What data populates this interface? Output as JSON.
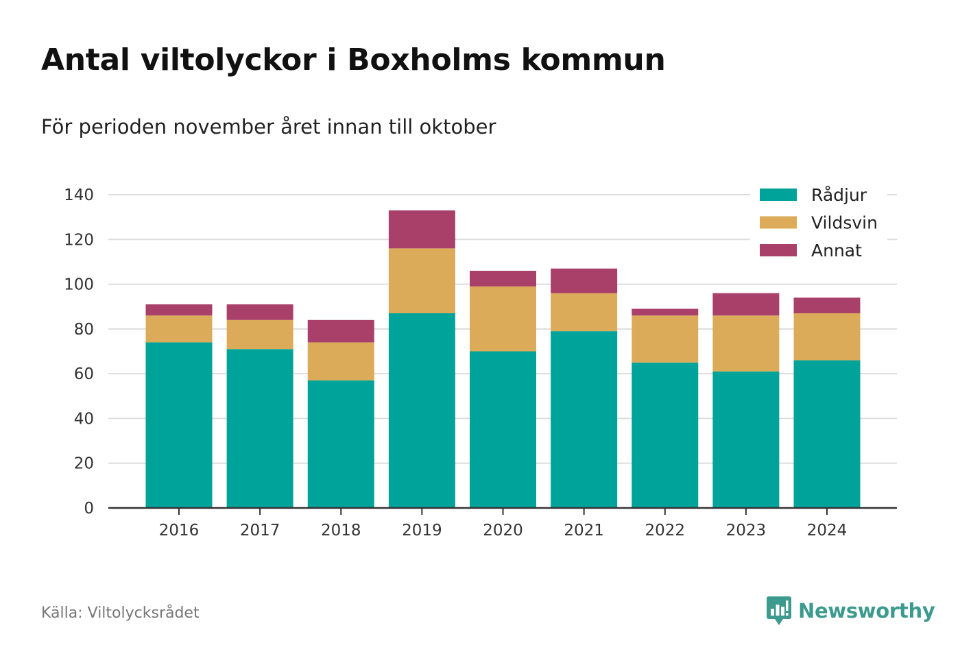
{
  "title": "Antal viltolyckor i Boxholms kommun",
  "subtitle": "För perioden november året innan till oktober",
  "source": "Källa: Viltolycksrådet",
  "brand": "Newsworthy",
  "colors": {
    "radjur": "#00a39a",
    "vildsvin": "#dbab59",
    "annat": "#a84069",
    "grid": "#dddddd",
    "axis": "#333333",
    "brand": "#3c9a8e"
  },
  "chart_data": {
    "type": "bar",
    "stacked": true,
    "categories": [
      "2016",
      "2017",
      "2018",
      "2019",
      "2020",
      "2021",
      "2022",
      "2023",
      "2024"
    ],
    "series": [
      {
        "name": "Rådjur",
        "color": "#00a39a",
        "values": [
          74,
          71,
          57,
          87,
          70,
          79,
          65,
          61,
          66
        ]
      },
      {
        "name": "Vildsvin",
        "color": "#dbab59",
        "values": [
          12,
          13,
          17,
          29,
          29,
          17,
          21,
          25,
          21
        ]
      },
      {
        "name": "Annat",
        "color": "#a84069",
        "values": [
          5,
          7,
          10,
          17,
          7,
          11,
          3,
          10,
          7
        ]
      }
    ],
    "ylim": [
      0,
      140
    ],
    "yticks": [
      0,
      20,
      40,
      60,
      80,
      100,
      120,
      140
    ],
    "xlabel": "",
    "ylabel": "",
    "grid": true,
    "legend": "top-right"
  }
}
